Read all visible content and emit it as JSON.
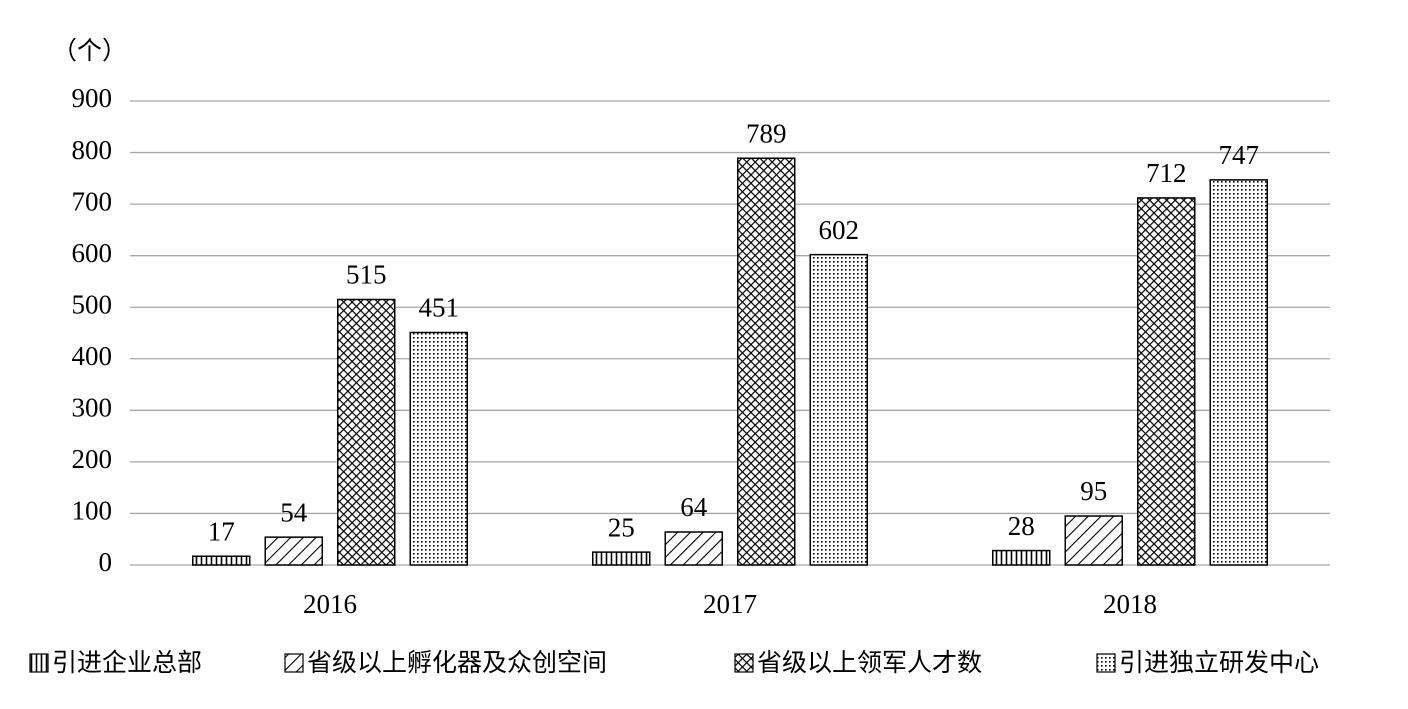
{
  "chart_data": {
    "type": "bar",
    "y_label": "（个）",
    "categories": [
      "2016",
      "2017",
      "2018"
    ],
    "series": [
      {
        "name": "引进企业总部",
        "color": "#000000",
        "values": [
          17,
          25,
          28
        ]
      },
      {
        "name": "省级以上孵化器及众创空间",
        "color": "#000000",
        "values": [
          54,
          64,
          95
        ]
      },
      {
        "name": "省级以上领军人才数",
        "color": "#000000",
        "values": [
          515,
          789,
          712
        ]
      },
      {
        "name": "引进独立研发中心",
        "color": "#000000",
        "values": [
          451,
          602,
          747
        ]
      }
    ],
    "ylim": [
      0,
      900
    ],
    "yticks": [
      0,
      100,
      200,
      300,
      400,
      500,
      600,
      700,
      800,
      900
    ],
    "grid": true,
    "data_labels": true,
    "legend": "bottom"
  }
}
